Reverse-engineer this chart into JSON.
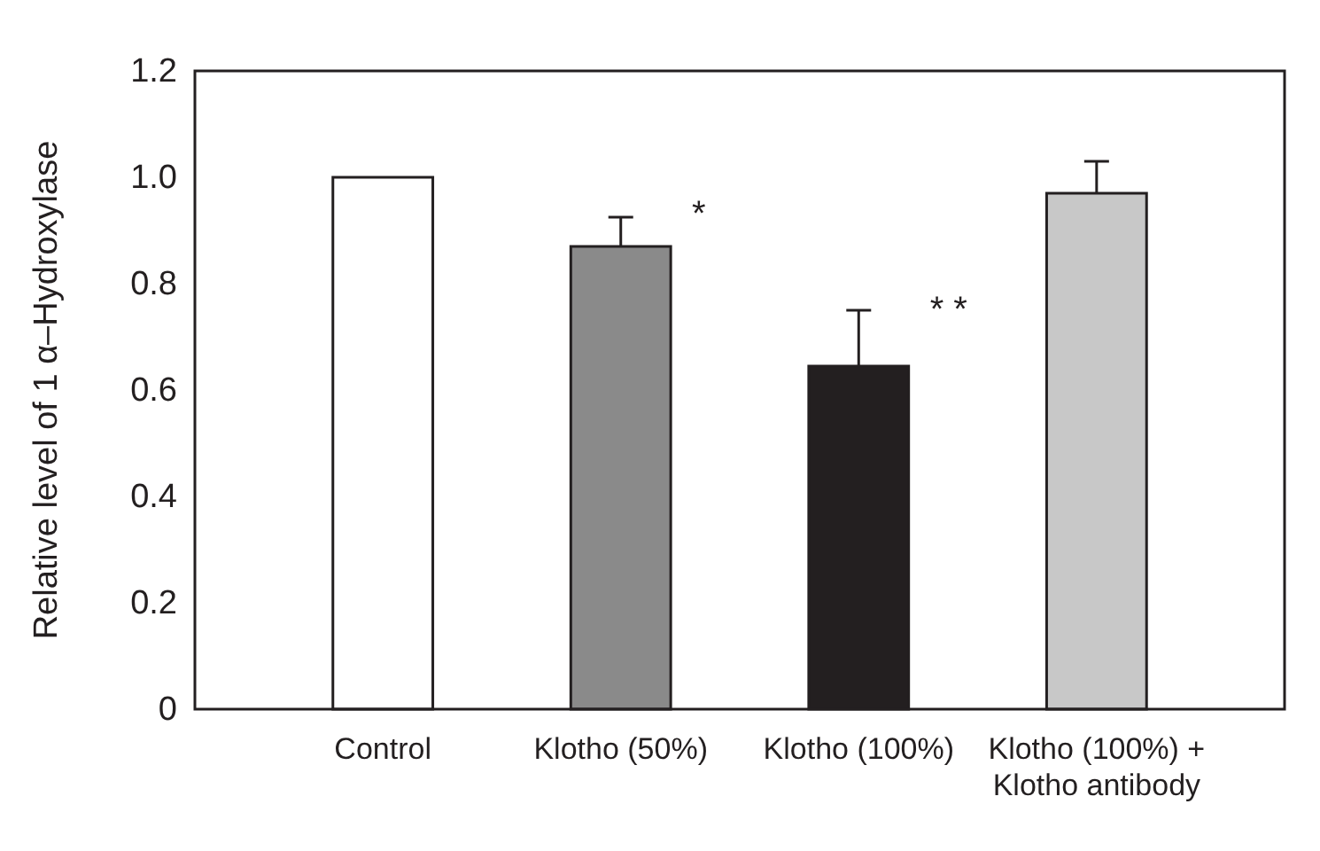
{
  "chart_data": {
    "type": "bar",
    "ylabel": "Relative level of 1 α–Hydroxylase",
    "categories": [
      "Control",
      "Klotho (50%)",
      "Klotho (100%)",
      "Klotho (100%) + Klotho antibody"
    ],
    "values": [
      1.0,
      0.87,
      0.645,
      0.97
    ],
    "colors": [
      "#ffffff",
      "#8a8a8a",
      "#231f20",
      "#c8c8c8"
    ],
    "errors": [
      null,
      [
        0.87,
        0.925
      ],
      [
        0.645,
        0.75
      ],
      [
        0.97,
        1.03
      ]
    ],
    "annotations": [
      {
        "text": "*",
        "x": "Klotho (50%)",
        "y": 0.93
      },
      {
        "text": "* *",
        "x": "Klotho (100%)",
        "y": 0.75
      }
    ],
    "ylim": [
      0,
      1.2
    ],
    "yticks": [
      0,
      {
        "value": 0.2,
        "label": "0.2"
      },
      {
        "value": 0.4,
        "label": "0.4"
      },
      {
        "value": 0.6,
        "label": "0.6"
      },
      {
        "value": 0.8,
        "label": "0.8"
      },
      {
        "value": 1.0,
        "label": "1.0"
      },
      {
        "value": 1.2,
        "label": "1.2"
      }
    ],
    "grid": false
  }
}
